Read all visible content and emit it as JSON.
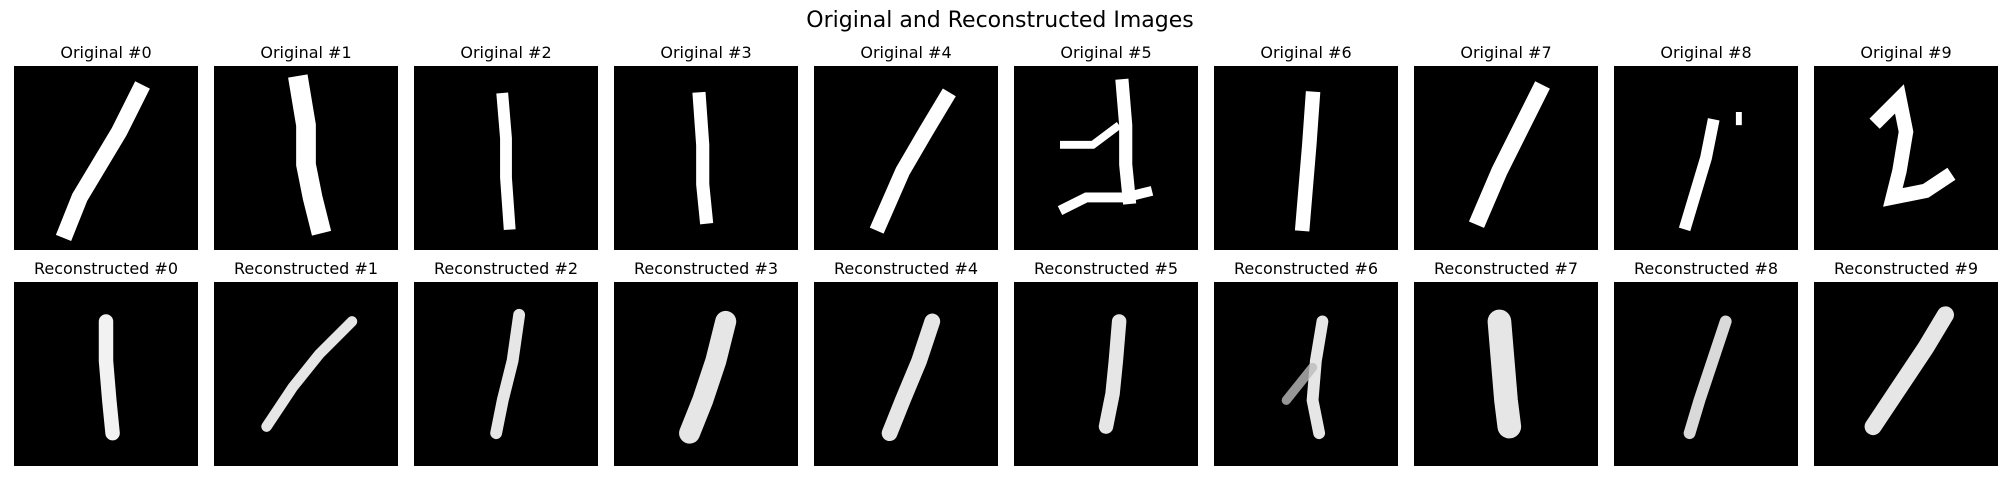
{
  "figure": {
    "title": "Original and Reconstructed Images"
  },
  "rows": [
    {
      "kind": "original",
      "labels": [
        "Original #0",
        "Original #1",
        "Original #2",
        "Original #3",
        "Original #4",
        "Original #5",
        "Original #6",
        "Original #7",
        "Original #8",
        "Original #9"
      ]
    },
    {
      "kind": "reconstructed",
      "labels": [
        "Reconstructed #0",
        "Reconstructed #1",
        "Reconstructed #2",
        "Reconstructed #3",
        "Reconstructed #4",
        "Reconstructed #5",
        "Reconstructed #6",
        "Reconstructed #7",
        "Reconstructed #8",
        "Reconstructed #9"
      ]
    }
  ],
  "colors": {
    "background": "#ffffff",
    "image_background": "#000000",
    "digit_stroke": "#ffffff",
    "text": "#000000"
  }
}
